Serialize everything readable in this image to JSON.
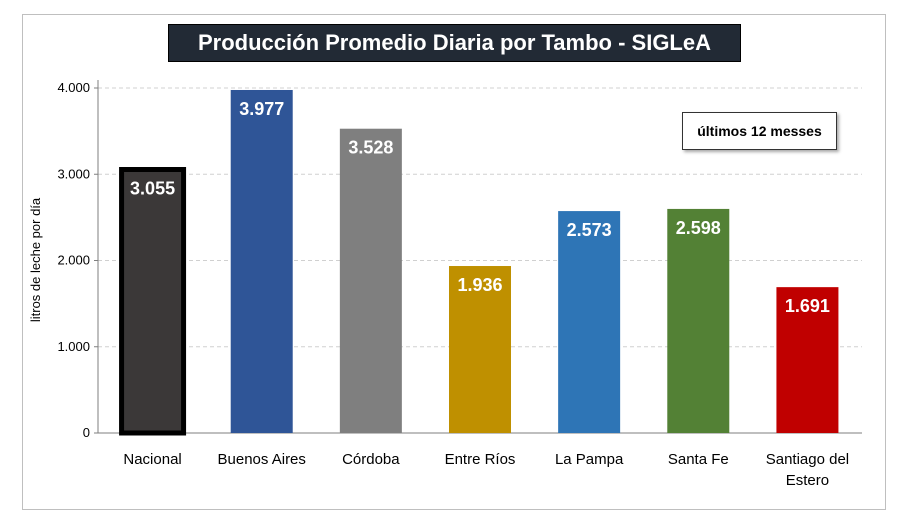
{
  "chart_data": {
    "type": "bar",
    "title": "Producción Promedio Diaria por Tambo - SIGLeA",
    "annotation": "últimos 12 messes",
    "xlabel": "",
    "ylabel": "litros de leche por día",
    "ylim": [
      0,
      4000
    ],
    "yticks": [
      0,
      1000,
      2000,
      3000,
      4000
    ],
    "ytick_labels": [
      "0",
      "1.000",
      "2.000",
      "3.000",
      "4.000"
    ],
    "grid": true,
    "categories": [
      [
        "Nacional"
      ],
      [
        "Buenos Aires"
      ],
      [
        "Córdoba"
      ],
      [
        "Entre Ríos"
      ],
      [
        "La Pampa"
      ],
      [
        "Santa Fe"
      ],
      [
        "Santiago del",
        "Estero"
      ]
    ],
    "values": [
      3055,
      3977,
      3528,
      1936,
      2573,
      2598,
      1691
    ],
    "value_labels": [
      "3.055",
      "3.977",
      "3.528",
      "1.936",
      "2.573",
      "2.598",
      "1.691"
    ],
    "colors": [
      "#3b3838",
      "#2f5597",
      "#7f7f7f",
      "#bf9000",
      "#2e75b6",
      "#538135",
      "#c00000"
    ],
    "highlight_index": 0
  }
}
